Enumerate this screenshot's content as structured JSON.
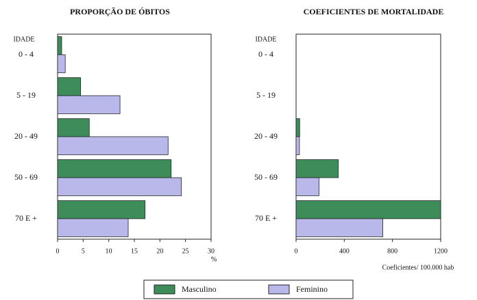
{
  "chart_data": [
    {
      "type": "bar",
      "orientation": "horizontal",
      "title": "PROPORÇÃO DE ÓBITOS",
      "category_axis_label": "IDADE",
      "xlabel": "%",
      "categories": [
        "0 - 4",
        "5 - 19",
        "20 - 49",
        "50 - 69",
        "70  E  +"
      ],
      "series": [
        {
          "name": "Masculino",
          "color": "#3e8c5a",
          "values": [
            0.8,
            4.5,
            6.2,
            22.2,
            17.1
          ]
        },
        {
          "name": "Feminino",
          "color": "#b9b8ea",
          "values": [
            1.5,
            12.2,
            21.6,
            24.2,
            13.8
          ]
        }
      ],
      "xlim": [
        0,
        30
      ],
      "xticks": [
        0,
        5,
        10,
        15,
        20,
        25,
        30
      ]
    },
    {
      "type": "bar",
      "orientation": "horizontal",
      "title": "COEFICIENTES DE MORTALIDADE",
      "category_axis_label": "IDADE",
      "xlabel": "Coeficientes/ 100.000 hab",
      "categories": [
        "0 - 4",
        "5 - 19",
        "20 - 49",
        "50 - 69",
        "70  E  +"
      ],
      "series": [
        {
          "color": "#3e8c5a",
          "values": [
            0,
            0,
            30,
            350,
            1200
          ]
        },
        {
          "color": "#b9b8ea",
          "values": [
            0,
            0,
            28,
            190,
            720
          ]
        }
      ],
      "xlim": [
        0,
        1200
      ],
      "xticks": [
        0,
        400,
        800,
        1200
      ]
    }
  ]
}
